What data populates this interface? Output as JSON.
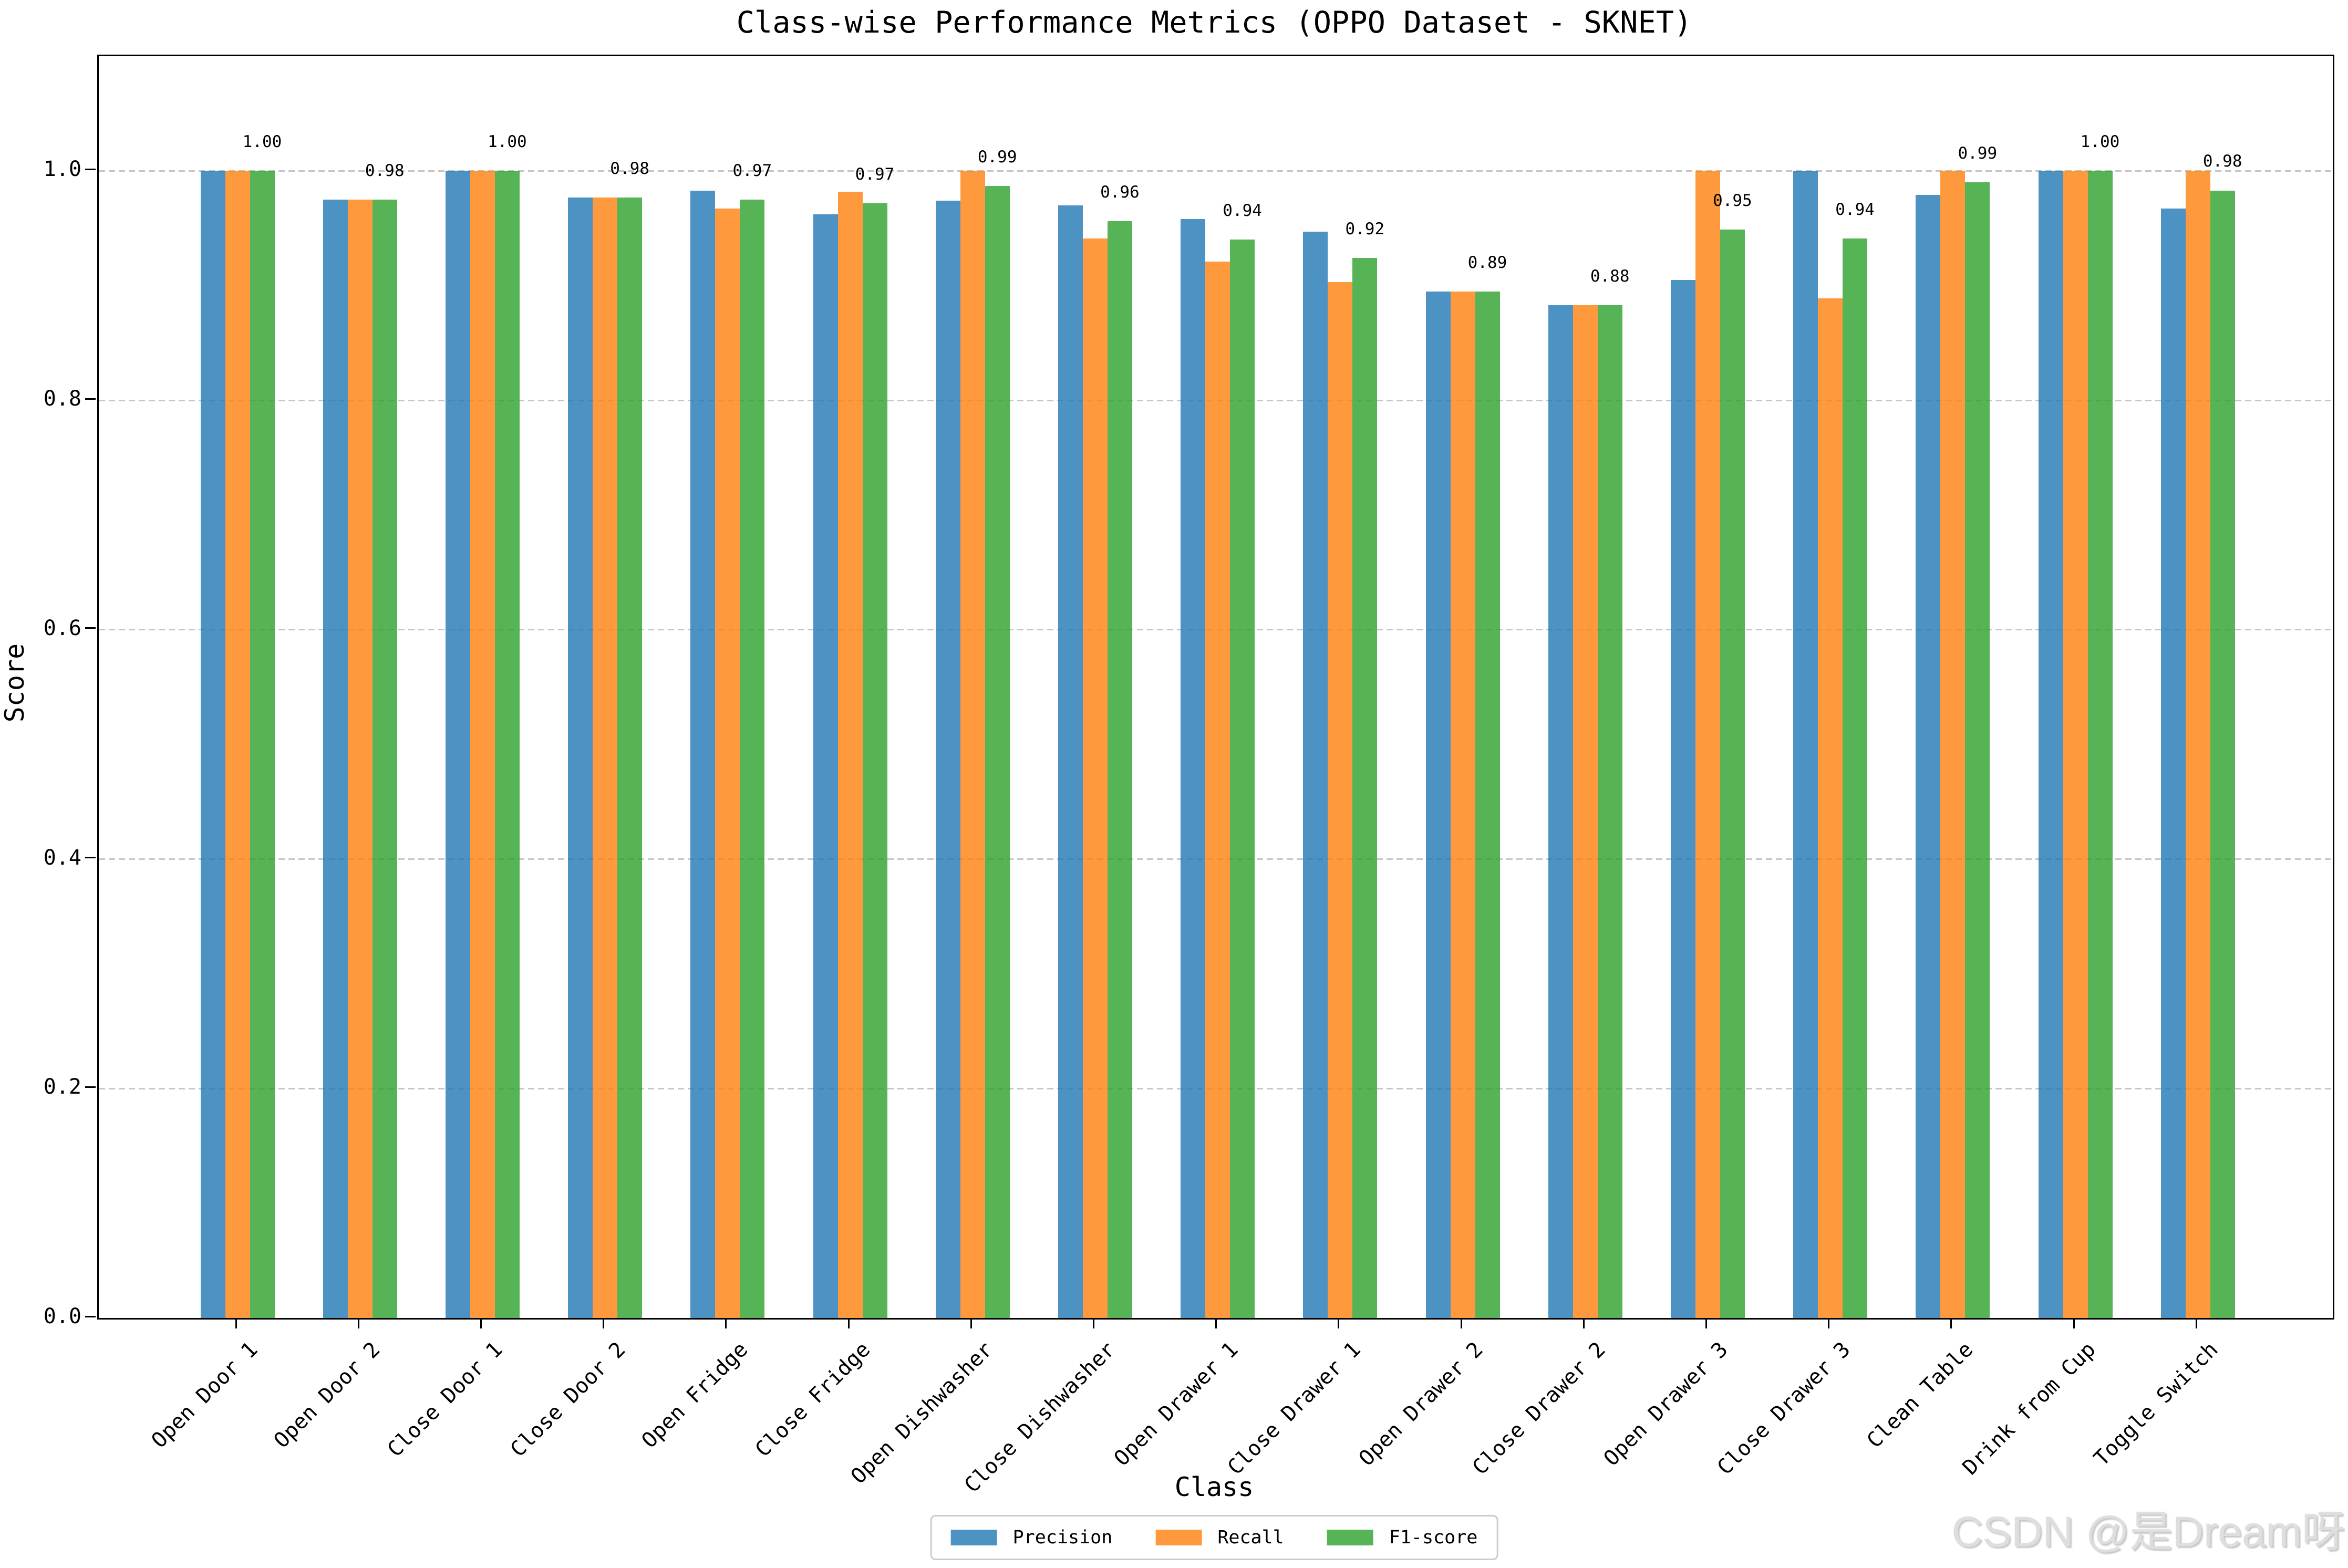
{
  "watermark": "CSDN @是Dream呀",
  "chart_data": {
    "type": "bar",
    "title": "Class-wise Performance Metrics (OPPO Dataset - SKNET)",
    "xlabel": "Class",
    "ylabel": "Score",
    "ylim": [
      0,
      1.1
    ],
    "yticks": [
      0.0,
      0.2,
      0.4,
      0.6,
      0.8,
      1.0
    ],
    "grid": "horizontal-dashed",
    "grid_color": "#c6c6c6",
    "legend_position": "bottom-center",
    "categories": [
      "Open Door 1",
      "Open Door 2",
      "Close Door 1",
      "Close Door 2",
      "Open Fridge",
      "Close Fridge",
      "Open Dishwasher",
      "Close Dishwasher",
      "Open Drawer 1",
      "Close Drawer 1",
      "Open Drawer 2",
      "Close Drawer 2",
      "Open Drawer 3",
      "Close Drawer 3",
      "Clean Table",
      "Drink from Cup",
      "Toggle Switch"
    ],
    "series": [
      {
        "name": "Precision",
        "color": "#1f77b4",
        "alpha": 0.8,
        "values": [
          1.0,
          0.975,
          1.0,
          0.977,
          0.983,
          0.962,
          0.974,
          0.97,
          0.958,
          0.947,
          0.895,
          0.883,
          0.905,
          1.0,
          0.979,
          1.0,
          0.967
        ]
      },
      {
        "name": "Recall",
        "color": "#ff7f0e",
        "alpha": 0.8,
        "values": [
          1.0,
          0.975,
          1.0,
          0.977,
          0.967,
          0.982,
          1.0,
          0.941,
          0.921,
          0.903,
          0.895,
          0.883,
          1.0,
          0.889,
          1.0,
          1.0,
          1.0
        ]
      },
      {
        "name": "F1-score",
        "color": "#2ca02c",
        "alpha": 0.8,
        "values": [
          1.0,
          0.975,
          1.0,
          0.977,
          0.975,
          0.972,
          0.987,
          0.956,
          0.94,
          0.924,
          0.895,
          0.883,
          0.949,
          0.941,
          0.99,
          1.0,
          0.983
        ]
      }
    ],
    "bar_value_labels": [
      "1.00",
      "0.98",
      "1.00",
      "0.98",
      "0.97",
      "0.97",
      "0.99",
      "0.96",
      "0.94",
      "0.92",
      "0.89",
      "0.88",
      "0.95",
      "0.94",
      "0.99",
      "1.00",
      "0.98"
    ]
  }
}
